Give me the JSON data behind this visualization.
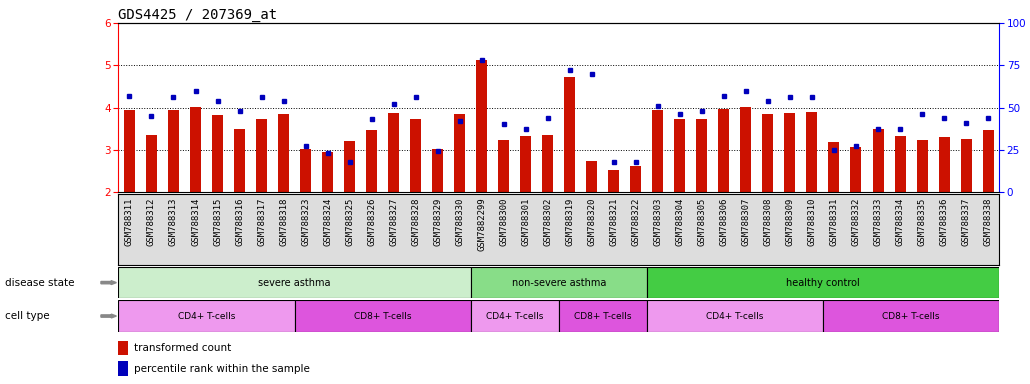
{
  "title": "GDS4425 / 207369_at",
  "samples": [
    "GSM788311",
    "GSM788312",
    "GSM788313",
    "GSM788314",
    "GSM788315",
    "GSM788316",
    "GSM788317",
    "GSM788318",
    "GSM788323",
    "GSM788324",
    "GSM788325",
    "GSM788326",
    "GSM788327",
    "GSM788328",
    "GSM788329",
    "GSM788330",
    "GSM7882299",
    "GSM788300",
    "GSM788301",
    "GSM788302",
    "GSM788319",
    "GSM788320",
    "GSM788321",
    "GSM788322",
    "GSM788303",
    "GSM788304",
    "GSM788305",
    "GSM788306",
    "GSM788307",
    "GSM788308",
    "GSM788309",
    "GSM788310",
    "GSM788331",
    "GSM788332",
    "GSM788333",
    "GSM788334",
    "GSM788335",
    "GSM788336",
    "GSM788337",
    "GSM788338"
  ],
  "red_values": [
    3.93,
    3.35,
    3.95,
    4.02,
    3.82,
    3.48,
    3.73,
    3.85,
    3.02,
    2.95,
    3.2,
    3.47,
    3.88,
    3.73,
    3.02,
    3.85,
    5.12,
    3.22,
    3.32,
    3.35,
    4.73,
    2.73,
    2.52,
    2.62,
    3.93,
    3.73,
    3.73,
    3.97,
    4.02,
    3.85,
    3.88,
    3.9,
    3.18,
    3.07,
    3.48,
    3.32,
    3.22,
    3.3,
    3.25,
    3.47
  ],
  "blue_values_pct": [
    57,
    45,
    56,
    60,
    54,
    48,
    56,
    54,
    27,
    23,
    18,
    43,
    52,
    56,
    24,
    42,
    78,
    40,
    37,
    44,
    72,
    70,
    18,
    18,
    51,
    46,
    48,
    57,
    60,
    54,
    56,
    56,
    25,
    27,
    37,
    37,
    46,
    44,
    41,
    44
  ],
  "disease_state_groups": [
    {
      "label": "severe asthma",
      "start": 0,
      "end": 15,
      "color": "#cceecc"
    },
    {
      "label": "non-severe asthma",
      "start": 16,
      "end": 23,
      "color": "#88dd88"
    },
    {
      "label": "healthy control",
      "start": 24,
      "end": 39,
      "color": "#44cc44"
    }
  ],
  "cell_type_groups": [
    {
      "label": "CD4+ T-cells",
      "start": 0,
      "end": 7,
      "color": "#ee99ee"
    },
    {
      "label": "CD8+ T-cells",
      "start": 8,
      "end": 15,
      "color": "#dd55dd"
    },
    {
      "label": "CD4+ T-cells",
      "start": 16,
      "end": 19,
      "color": "#ee99ee"
    },
    {
      "label": "CD8+ T-cells",
      "start": 20,
      "end": 23,
      "color": "#dd55dd"
    },
    {
      "label": "CD4+ T-cells",
      "start": 24,
      "end": 31,
      "color": "#ee99ee"
    },
    {
      "label": "CD8+ T-cells",
      "start": 32,
      "end": 39,
      "color": "#dd55dd"
    }
  ],
  "ylim": [
    2.0,
    6.0
  ],
  "yticks": [
    2,
    3,
    4,
    5,
    6
  ],
  "dotted_lines": [
    3.0,
    4.0,
    5.0
  ],
  "right_yticks": [
    0,
    25,
    50,
    75,
    100
  ],
  "bar_color": "#cc1100",
  "dot_color": "#0000bb",
  "title_fontsize": 10,
  "tick_fontsize": 6.5,
  "label_fontsize": 8
}
